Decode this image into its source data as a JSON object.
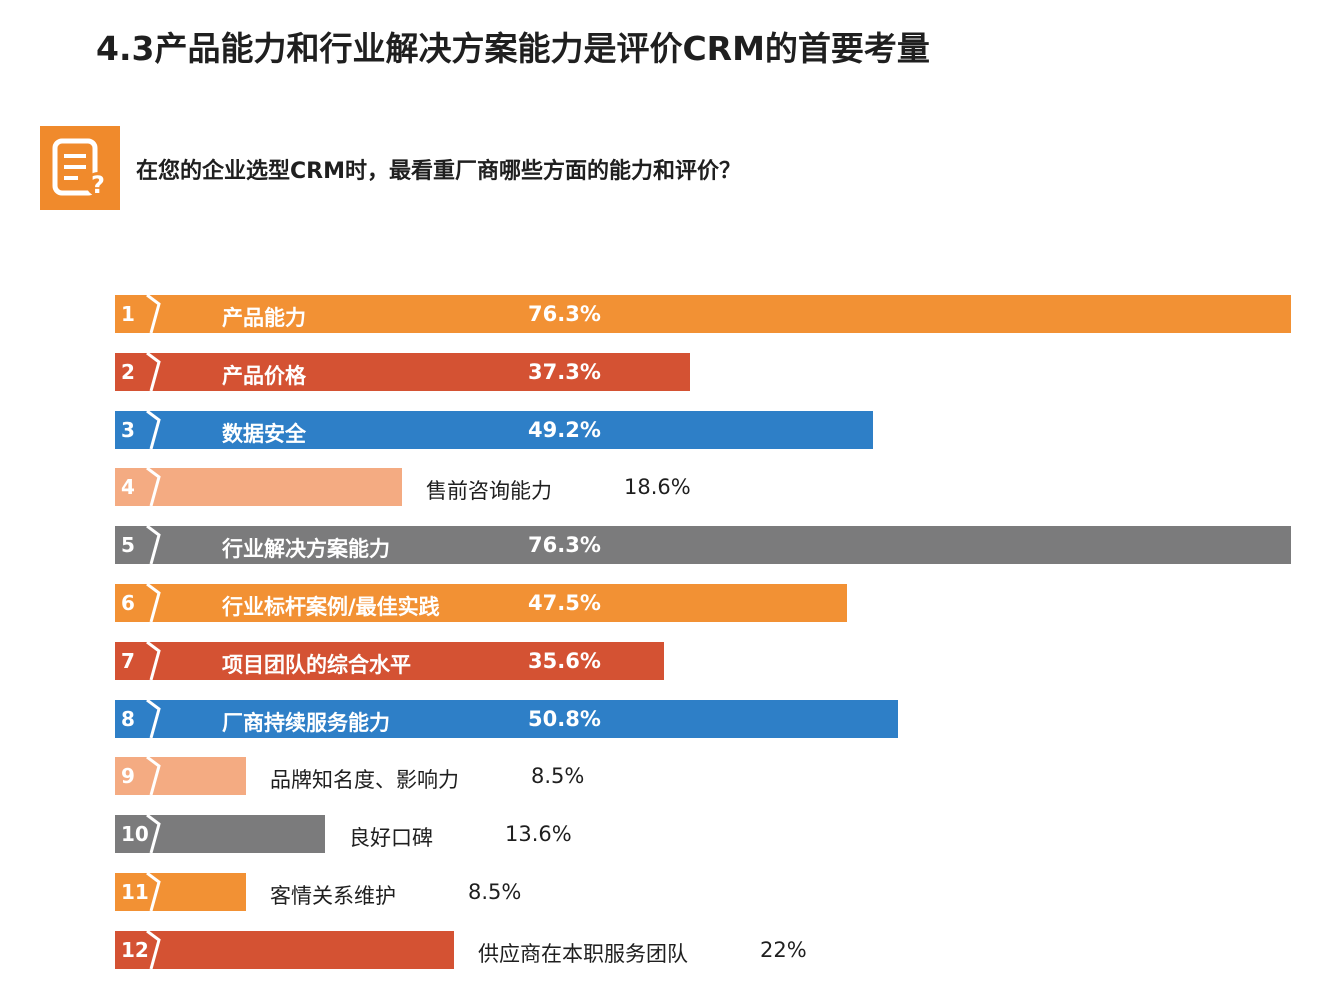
{
  "title": "4.3产品能力和行业解决方案能力是评价CRM的首要考量",
  "question": "在您的企业选型CRM时，最看重厂商哪些方面的能力和评价？",
  "icon": "document-question-icon",
  "colors": {
    "orange": "#f29134",
    "red": "#d45233",
    "blue": "#2e7fc7",
    "light_orange": "#f4ab82",
    "gray": "#7b7b7c",
    "icon_bg": "#f08a2c"
  },
  "chart_data": {
    "type": "bar",
    "orientation": "horizontal",
    "unit": "%",
    "xlim": [
      0,
      76.3
    ],
    "items": [
      {
        "rank": "1",
        "label": "产品能力",
        "value": 76.3,
        "value_label": "76.3%",
        "color": "#f29134",
        "label_inside": true
      },
      {
        "rank": "2",
        "label": "产品价格",
        "value": 37.3,
        "value_label": "37.3%",
        "color": "#d45233",
        "label_inside": true
      },
      {
        "rank": "3",
        "label": "数据安全",
        "value": 49.2,
        "value_label": "49.2%",
        "color": "#2e7fc7",
        "label_inside": true
      },
      {
        "rank": "4",
        "label": "售前咨询能力",
        "value": 18.6,
        "value_label": "18.6%",
        "color": "#f4ab82",
        "label_inside": false
      },
      {
        "rank": "5",
        "label": "行业解决方案能力",
        "value": 76.3,
        "value_label": "76.3%",
        "color": "#7b7b7c",
        "label_inside": true
      },
      {
        "rank": "6",
        "label": "行业标杆案例/最佳实践",
        "value": 47.5,
        "value_label": "47.5%",
        "color": "#f29134",
        "label_inside": true
      },
      {
        "rank": "7",
        "label": "项目团队的综合水平",
        "value": 35.6,
        "value_label": "35.6%",
        "color": "#d45233",
        "label_inside": true
      },
      {
        "rank": "8",
        "label": "厂商持续服务能力",
        "value": 50.8,
        "value_label": "50.8%",
        "color": "#2e7fc7",
        "label_inside": true
      },
      {
        "rank": "9",
        "label": "品牌知名度、影响力",
        "value": 8.5,
        "value_label": "8.5%",
        "color": "#f4ab82",
        "label_inside": false
      },
      {
        "rank": "10",
        "label": "良好口碑",
        "value": 13.6,
        "value_label": "13.6%",
        "color": "#7b7b7c",
        "label_inside": false
      },
      {
        "rank": "11",
        "label": "客情关系维护",
        "value": 8.5,
        "value_label": "8.5%",
        "color": "#f29134",
        "label_inside": false
      },
      {
        "rank": "12",
        "label": "供应商在本职服务团队",
        "value": 22,
        "value_label": "22%",
        "color": "#d45233",
        "label_inside": false
      }
    ]
  }
}
